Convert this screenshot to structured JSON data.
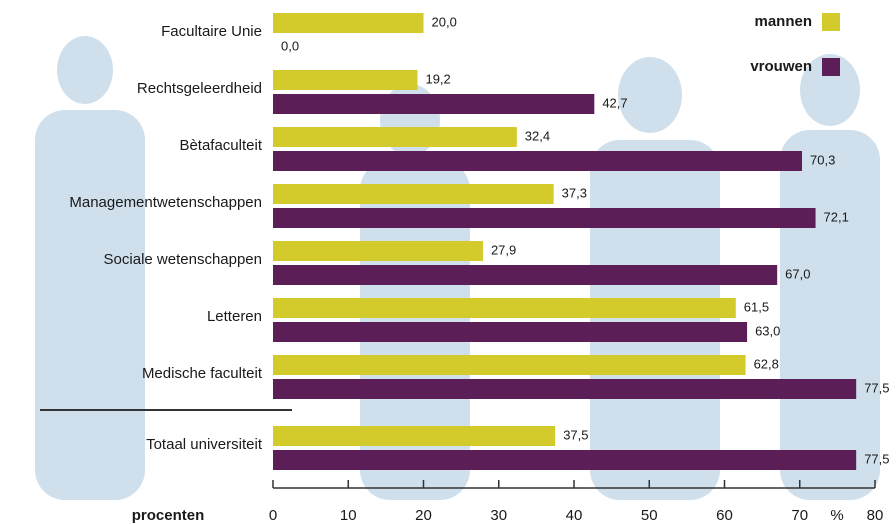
{
  "chart_data": {
    "type": "bar",
    "orientation": "horizontal",
    "categories": [
      "Facultaire Unie",
      "Rechtsgeleerdheid",
      "Bètafaculteit",
      "Managementwetenschappen",
      "Sociale wetenschappen",
      "Letteren",
      "Medische faculteit",
      "Totaal universiteit"
    ],
    "series": [
      {
        "name": "mannen",
        "color": "#d3cb2b",
        "values": [
          20.0,
          19.2,
          32.4,
          37.3,
          27.9,
          61.5,
          62.8,
          37.5
        ],
        "value_labels": [
          "20,0",
          "19,2",
          "32,4",
          "37,3",
          "27,9",
          "61,5",
          "62,8",
          "37,5"
        ]
      },
      {
        "name": "vrouwen",
        "color": "#5b1e56",
        "values": [
          0.0,
          42.7,
          70.3,
          72.1,
          67.0,
          63.0,
          77.5,
          77.5
        ],
        "value_labels": [
          "0,0",
          "42,7",
          "70,3",
          "72,1",
          "67,0",
          "63,0",
          "77,5",
          "77,5"
        ]
      }
    ],
    "xlim": [
      0,
      80
    ],
    "xticks": [
      0,
      10,
      20,
      30,
      40,
      50,
      60,
      70,
      80
    ],
    "x_label": "procenten",
    "x_unit": "%",
    "legend": "top-right"
  }
}
